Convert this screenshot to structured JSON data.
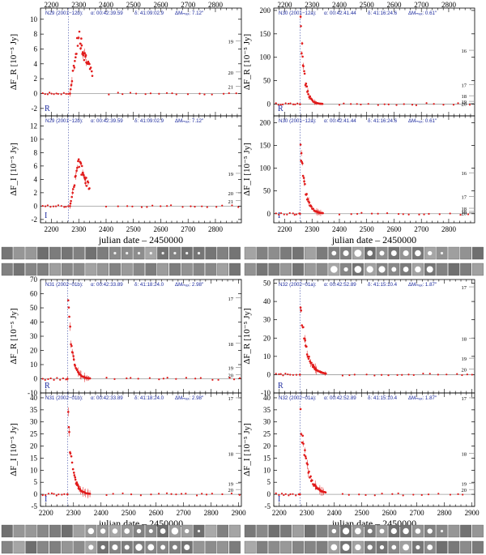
{
  "figure": {
    "xlabel": "julian date – 2450000",
    "colors": {
      "points": "#e11b1b",
      "header": "#1d2b9e",
      "axis": "#000000",
      "dotted": "#3040a0",
      "zero": "#9a9a9a"
    }
  },
  "chart_data": [
    {
      "type": "scatter",
      "id": "N29",
      "epoch": "N29 (2001−12b):",
      "alpha": "α: 00:42:39.59",
      "delta": "δ: 41:09:02.9",
      "dmax": "ΔMₘₐₓ: 7.12″",
      "peak_jd": 2262,
      "xlim": [
        2160,
        2895
      ],
      "panels": [
        {
          "band": "R",
          "ylabel": "ΔF_R [10⁻⁵ Jy]",
          "ylim": [
            -3,
            11.5
          ],
          "yticks": [
            -2,
            0,
            2,
            4,
            6,
            8,
            10
          ],
          "mag_labels": [
            "19",
            "20",
            "21"
          ],
          "mag_values": [
            7.1,
            2.9,
            1.0
          ],
          "decay": {
            "amp": 8.5,
            "rise": 2268,
            "peak": 2300,
            "tau": 45,
            "cut": 2350
          }
        },
        {
          "band": "I",
          "ylabel": "ΔF_I [10⁻⁵ Jy]",
          "ylim": [
            -2.5,
            13.5
          ],
          "yticks": [
            -2,
            0,
            2,
            4,
            6,
            8,
            10,
            12
          ],
          "mag_labels": [
            "19",
            "20",
            "21"
          ],
          "mag_values": [
            4.9,
            2.0,
            0.8
          ],
          "decay": {
            "amp": 7.0,
            "rise": 2268,
            "peak": 2300,
            "tau": 45,
            "cut": 2340
          }
        }
      ],
      "x_top_ticks": [
        2200,
        2300,
        2400,
        2500,
        2600,
        2700,
        2800
      ]
    },
    {
      "type": "scatter",
      "id": "N30",
      "epoch": "N30 (2001−12a):",
      "alpha": "α: 00:42:41.44",
      "delta": "δ: 41:16:24.6",
      "dmax": "ΔMₘₐₓ: 0.61″",
      "peak_jd": 2256,
      "xlim": [
        2160,
        2895
      ],
      "panels": [
        {
          "band": "R",
          "ylabel": "ΔF_R [10⁻⁵ Jy]",
          "ylim": [
            -25,
            205
          ],
          "yticks": [
            0,
            50,
            100,
            150,
            200
          ],
          "mag_labels": [
            "16",
            "17",
            "18",
            "19",
            "20"
          ],
          "mag_values": [
            115,
            42,
            18,
            6,
            2
          ],
          "decay": {
            "amp": 175,
            "rise": 2256,
            "peak": 2258,
            "tau": 14,
            "cut": 2340
          }
        },
        {
          "band": "I",
          "ylabel": "ΔF_I [10⁻⁵ Jy]",
          "ylim": [
            -20,
            215
          ],
          "yticks": [
            0,
            50,
            100,
            150,
            200
          ],
          "mag_labels": [
            "16",
            "17",
            "18",
            "19",
            "20"
          ],
          "mag_values": [
            90,
            38,
            12,
            5,
            2
          ],
          "decay": {
            "amp": 150,
            "rise": 2256,
            "peak": 2258,
            "tau": 17,
            "cut": 2340
          }
        }
      ],
      "x_top_ticks": [
        2200,
        2300,
        2400,
        2500,
        2600,
        2700,
        2800
      ]
    },
    {
      "type": "scatter",
      "id": "N31",
      "epoch": "N31 (2002−01b):",
      "alpha": "α: 00:42:33.89",
      "delta": "δ: 41:18:24.0",
      "dmax": "ΔMₘₐₓ: 2.98″",
      "peak_jd": 2278,
      "xlim": [
        2180,
        2910
      ],
      "panels": [
        {
          "band": "R",
          "ylabel": "ΔF_R [10⁻⁵ Jy]",
          "ylim": [
            -10,
            70
          ],
          "yticks": [
            -10,
            0,
            10,
            20,
            30,
            40,
            50,
            60,
            70
          ],
          "mag_labels": [
            "17",
            "18",
            "19",
            "20"
          ],
          "mag_values": [
            57,
            25,
            8,
            3
          ],
          "decay": {
            "amp": 60,
            "rise": 2278,
            "peak": 2279,
            "tau": 15,
            "cut": 2360
          }
        },
        {
          "band": "I",
          "ylabel": "ΔF_I [10⁻⁵ Jy]",
          "ylim": [
            -5,
            42
          ],
          "yticks": [
            -5,
            0,
            5,
            10,
            15,
            20,
            25,
            30,
            35,
            40
          ],
          "mag_labels": [
            "17",
            "18",
            "19",
            "20"
          ],
          "mag_values": [
            40,
            17,
            4.5,
            2
          ],
          "decay": {
            "amp": 33,
            "rise": 2278,
            "peak": 2280,
            "tau": 16,
            "cut": 2360
          }
        }
      ],
      "x_bottom_ticks": [
        2200,
        2300,
        2400,
        2500,
        2600,
        2700,
        2800,
        2900
      ]
    },
    {
      "type": "scatter",
      "id": "N32",
      "epoch": "N32 (2002−01a):",
      "alpha": "α: 00:42:52.89",
      "delta": "δ: 41:15:10.4",
      "dmax": "ΔMₘₐₓ: 1.87″",
      "peak_jd": 2275,
      "xlim": [
        2180,
        2910
      ],
      "panels": [
        {
          "band": "R",
          "ylabel": "ΔF_R [10⁻⁵ Jy]",
          "ylim": [
            -10,
            52
          ],
          "yticks": [
            -10,
            0,
            10,
            20,
            30,
            40,
            50
          ],
          "mag_labels": [
            "17",
            "18",
            "19",
            "20"
          ],
          "mag_values": [
            48,
            20,
            9,
            3
          ],
          "decay": {
            "amp": 40,
            "rise": 2275,
            "peak": 2277,
            "tau": 22,
            "cut": 2370
          }
        },
        {
          "band": "I",
          "ylabel": "ΔF_I [10⁻⁵ Jy]",
          "ylim": [
            -5,
            42
          ],
          "yticks": [
            -5,
            0,
            5,
            10,
            15,
            20,
            25,
            30,
            35,
            40
          ],
          "mag_labels": [
            "17",
            "18",
            "19",
            "20"
          ],
          "mag_values": [
            40,
            17,
            4.5,
            2
          ],
          "decay": {
            "amp": 33,
            "rise": 2275,
            "peak": 2277,
            "tau": 24,
            "cut": 2370
          }
        }
      ],
      "x_bottom_ticks": [
        2200,
        2300,
        2400,
        2500,
        2600,
        2700,
        2800,
        2900
      ]
    }
  ]
}
